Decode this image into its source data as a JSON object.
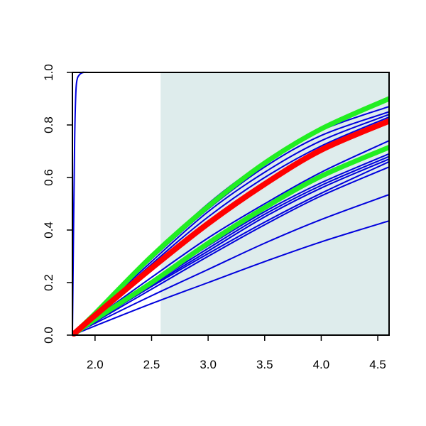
{
  "chart_data": {
    "type": "line",
    "title": "",
    "xlabel": "",
    "ylabel": "",
    "xlim": [
      1.8,
      4.6
    ],
    "ylim": [
      0.0,
      1.0
    ],
    "xticks": [
      {
        "value": 2.0,
        "label": "2.0"
      },
      {
        "value": 2.5,
        "label": "2.5"
      },
      {
        "value": 3.0,
        "label": "3.0"
      },
      {
        "value": 3.5,
        "label": "3.5"
      },
      {
        "value": 4.0,
        "label": "4.0"
      },
      {
        "value": 4.5,
        "label": "4.5"
      }
    ],
    "yticks": [
      {
        "value": 0.0,
        "label": "0.0"
      },
      {
        "value": 0.2,
        "label": "0.2"
      },
      {
        "value": 0.4,
        "label": "0.4"
      },
      {
        "value": 0.6,
        "label": "0.6"
      },
      {
        "value": 0.8,
        "label": "0.8"
      },
      {
        "value": 1.0,
        "label": "1.0"
      }
    ],
    "grid": false,
    "legend": "none",
    "shaded_region": {
      "x_from": 2.58,
      "x_to": 4.6,
      "color": "#deecec"
    },
    "series": [
      {
        "color": "#0000dd",
        "width": 2,
        "x": [
          1.8,
          1.81,
          1.82,
          1.83,
          1.84,
          1.86,
          1.9,
          2.0,
          3.0,
          4.6
        ],
        "y": [
          0.0,
          0.4,
          0.75,
          0.92,
          0.97,
          0.99,
          1.0,
          1.0,
          1.0,
          1.0
        ]
      },
      {
        "color": "#0000dd",
        "width": 2,
        "x": [
          1.8,
          4.6
        ],
        "y": [
          1.0,
          1.0
        ]
      },
      {
        "color": "#0000dd",
        "width": 2,
        "x": [
          1.8,
          2.0,
          2.5,
          3.0,
          3.5,
          4.0,
          4.6
        ],
        "y": [
          0.0,
          0.085,
          0.3,
          0.5,
          0.66,
          0.78,
          0.87
        ]
      },
      {
        "color": "#0000dd",
        "width": 2,
        "x": [
          1.8,
          2.0,
          2.5,
          3.0,
          3.5,
          4.0,
          4.6
        ],
        "y": [
          0.0,
          0.08,
          0.29,
          0.48,
          0.64,
          0.76,
          0.85
        ]
      },
      {
        "color": "#0000dd",
        "width": 2,
        "x": [
          1.8,
          2.0,
          2.5,
          3.0,
          3.5,
          4.0,
          4.6
        ],
        "y": [
          0.0,
          0.078,
          0.28,
          0.47,
          0.62,
          0.74,
          0.84
        ]
      },
      {
        "color": "#0000dd",
        "width": 2,
        "x": [
          1.8,
          2.0,
          2.5,
          3.0,
          3.5,
          4.0,
          4.6
        ],
        "y": [
          0.0,
          0.075,
          0.27,
          0.45,
          0.6,
          0.72,
          0.83
        ]
      },
      {
        "color": "#0000dd",
        "width": 2,
        "x": [
          1.8,
          2.0,
          2.5,
          3.0,
          3.5,
          4.0,
          4.6
        ],
        "y": [
          0.0,
          0.072,
          0.26,
          0.43,
          0.58,
          0.7,
          0.82
        ]
      },
      {
        "color": "#0000dd",
        "width": 2,
        "x": [
          1.8,
          2.0,
          2.5,
          3.0,
          3.5,
          4.0,
          4.6
        ],
        "y": [
          0.0,
          0.065,
          0.22,
          0.37,
          0.5,
          0.62,
          0.74
        ]
      },
      {
        "color": "#0000dd",
        "width": 2,
        "x": [
          1.8,
          2.0,
          2.5,
          3.0,
          3.5,
          4.0,
          4.6
        ],
        "y": [
          0.0,
          0.06,
          0.2,
          0.34,
          0.47,
          0.58,
          0.69
        ]
      },
      {
        "color": "#0000dd",
        "width": 2,
        "x": [
          1.8,
          2.0,
          2.5,
          3.0,
          3.5,
          4.0,
          4.6
        ],
        "y": [
          0.0,
          0.058,
          0.195,
          0.33,
          0.46,
          0.57,
          0.68
        ]
      },
      {
        "color": "#0000dd",
        "width": 2,
        "x": [
          1.8,
          2.0,
          2.5,
          3.0,
          3.5,
          4.0,
          4.6
        ],
        "y": [
          0.0,
          0.055,
          0.19,
          0.32,
          0.45,
          0.56,
          0.67
        ]
      },
      {
        "color": "#0000dd",
        "width": 2,
        "x": [
          1.8,
          2.0,
          2.5,
          3.0,
          3.5,
          4.0,
          4.6
        ],
        "y": [
          0.0,
          0.053,
          0.185,
          0.31,
          0.43,
          0.54,
          0.66
        ]
      },
      {
        "color": "#0000dd",
        "width": 2,
        "x": [
          1.8,
          2.0,
          2.5,
          3.0,
          3.5,
          4.0,
          4.6
        ],
        "y": [
          0.0,
          0.05,
          0.175,
          0.3,
          0.42,
          0.53,
          0.64
        ]
      },
      {
        "color": "#0000dd",
        "width": 2,
        "x": [
          1.8,
          2.0,
          2.5,
          3.0,
          3.5,
          4.0,
          4.6
        ],
        "y": [
          0.0,
          0.045,
          0.15,
          0.25,
          0.35,
          0.44,
          0.535
        ]
      },
      {
        "color": "#0000dd",
        "width": 2,
        "x": [
          1.8,
          2.0,
          2.5,
          3.0,
          3.5,
          4.0,
          4.6
        ],
        "y": [
          0.0,
          0.035,
          0.12,
          0.2,
          0.28,
          0.355,
          0.435
        ]
      },
      {
        "color": "#22ee22",
        "width": 7,
        "x": [
          1.8,
          2.0,
          2.5,
          3.0,
          3.5,
          4.0,
          4.6
        ],
        "y": [
          0.0,
          0.082,
          0.3,
          0.49,
          0.655,
          0.785,
          0.9
        ]
      },
      {
        "color": "#22ee22",
        "width": 7,
        "x": [
          1.8,
          2.0,
          2.5,
          3.0,
          3.5,
          4.0,
          4.6
        ],
        "y": [
          0.0,
          0.06,
          0.2,
          0.35,
          0.485,
          0.605,
          0.715
        ]
      },
      {
        "color": "#ff0000",
        "width": 8,
        "x": [
          1.8,
          2.0,
          2.5,
          3.0,
          3.5,
          4.0,
          4.6
        ],
        "y": [
          0.0,
          0.075,
          0.255,
          0.425,
          0.575,
          0.705,
          0.815
        ]
      }
    ]
  }
}
